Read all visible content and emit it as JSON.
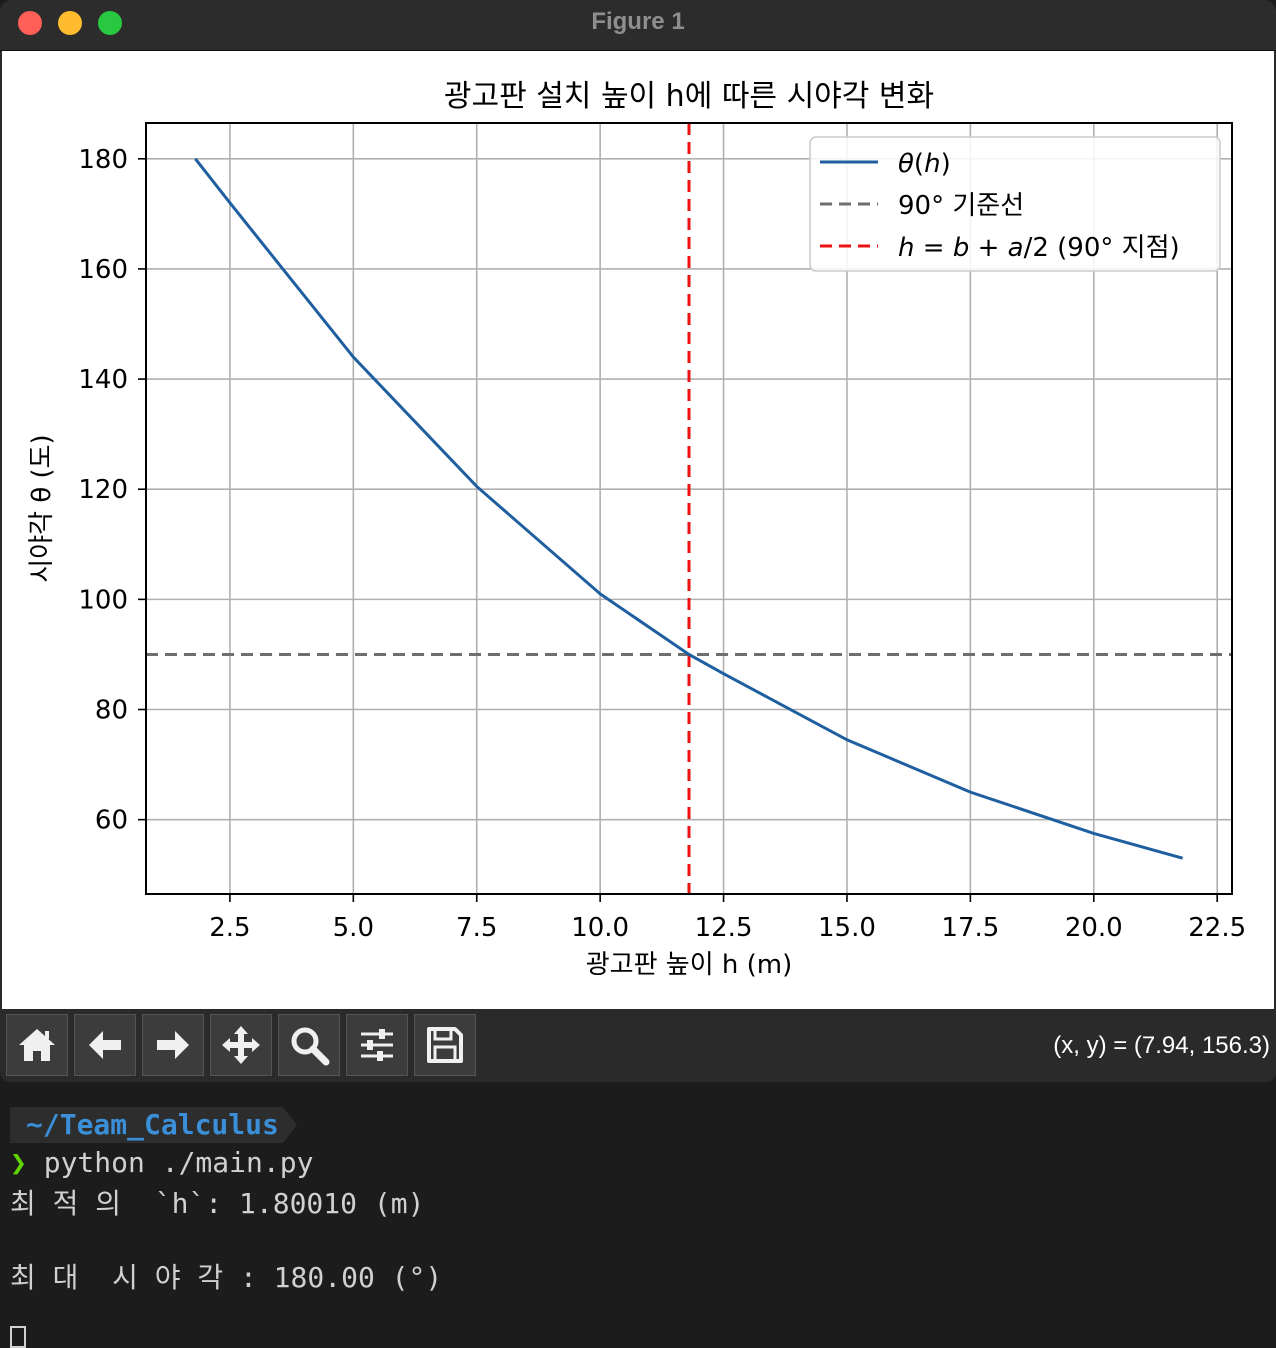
{
  "window": {
    "title": "Figure 1"
  },
  "chart_data": {
    "type": "line",
    "title": "광고판 설치 높이 h에 따른 시야각 변화",
    "xlabel": "광고판 높이 h (m)",
    "ylabel": "시야각 θ  (도)",
    "xlim": [
      0.8,
      22.8
    ],
    "ylim": [
      46.5,
      186.5
    ],
    "xticks": [
      2.5,
      5.0,
      7.5,
      10.0,
      12.5,
      15.0,
      17.5,
      20.0,
      22.5
    ],
    "xtick_labels": [
      "2.5",
      "5.0",
      "7.5",
      "10.0",
      "12.5",
      "15.0",
      "17.5",
      "20.0",
      "22.5"
    ],
    "yticks": [
      60,
      80,
      100,
      120,
      140,
      160,
      180
    ],
    "ytick_labels": [
      "60",
      "80",
      "100",
      "120",
      "140",
      "160",
      "180"
    ],
    "grid": true,
    "legend_position": "top-right",
    "series": [
      {
        "name": "θ(h)",
        "color": "#1f5fa0",
        "style": "solid",
        "x": [
          1.8,
          2.5,
          5.0,
          7.5,
          10.0,
          11.8,
          12.5,
          15.0,
          17.5,
          20.0,
          21.8
        ],
        "y": [
          180,
          172,
          144,
          120.5,
          101,
          90,
          86.5,
          74.5,
          65,
          57.5,
          53
        ]
      }
    ],
    "reference_lines": [
      {
        "name": "90°  기준선",
        "orientation": "horizontal",
        "value": 90,
        "color": "#6e6e6e",
        "style": "dashed"
      },
      {
        "name": "h = b + a/2 (90°  지점)",
        "orientation": "vertical",
        "value": 11.8,
        "color": "#ee1111",
        "style": "dashed"
      }
    ],
    "legend": [
      {
        "label_html": "<tspan font-style='italic'>θ</tspan>(<tspan font-style='italic'>h</tspan>)",
        "color": "#1f5fa0",
        "style": "solid"
      },
      {
        "label_html": "90°  기준선",
        "color": "#6e6e6e",
        "style": "dashed"
      },
      {
        "label_html": "<tspan font-style='italic'>h</tspan> = <tspan font-style='italic'>b</tspan> + <tspan font-style='italic'>a</tspan>/2 (90°  지점)",
        "color": "#ee1111",
        "style": "dashed"
      }
    ]
  },
  "toolbar": {
    "buttons": [
      {
        "name": "home",
        "icon": "home-icon"
      },
      {
        "name": "back",
        "icon": "arrow-left-icon"
      },
      {
        "name": "forward",
        "icon": "arrow-right-icon"
      },
      {
        "name": "pan",
        "icon": "move-icon"
      },
      {
        "name": "zoom",
        "icon": "magnifier-icon"
      },
      {
        "name": "configure-subplots",
        "icon": "sliders-icon"
      },
      {
        "name": "save",
        "icon": "floppy-disk-icon"
      }
    ],
    "coords": "(x, y) = (7.94, 156.3)"
  },
  "terminal": {
    "cwd": "~/Team_Calculus",
    "prompt_symbol": "❯",
    "command": "python ./main.py",
    "output": [
      "최 적 의  `h`: 1.80010 (m)",
      "",
      "최 대  시 야 각 : 180.00 (°)"
    ]
  }
}
